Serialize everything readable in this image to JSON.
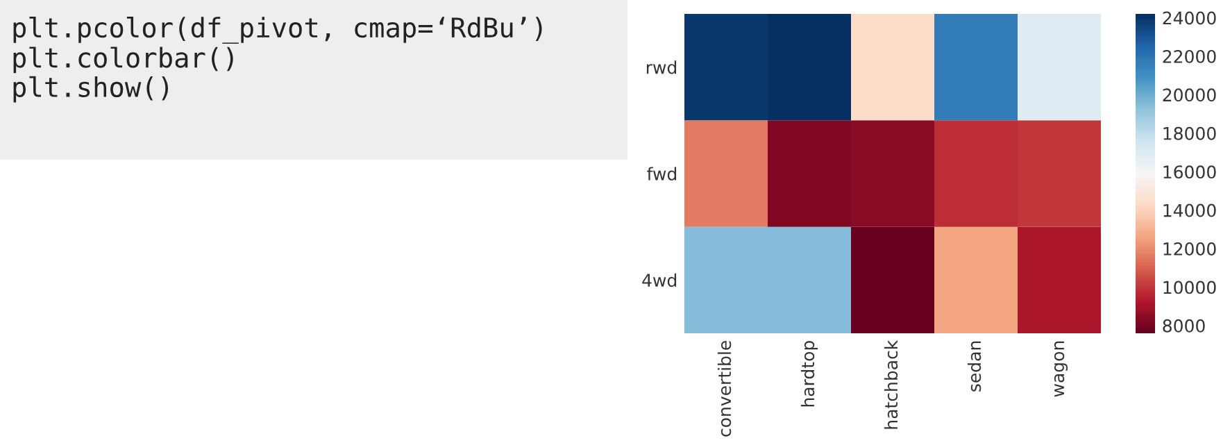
{
  "chart_data": {
    "type": "heatmap",
    "categories": [
      "convertible",
      "hardtop",
      "hatchback",
      "sedan",
      "wagon"
    ],
    "y_categories": [
      "rwd",
      "fwd",
      "4wd"
    ],
    "cells": [
      [
        23900,
        24200,
        14300,
        21700,
        17000
      ],
      [
        11600,
        8200,
        8400,
        9800,
        10000
      ],
      [
        19500,
        19500,
        7600,
        12600,
        9100
      ]
    ],
    "clim": [
      7600,
      24200
    ],
    "cticks": [
      8000,
      10000,
      12000,
      14000,
      16000,
      18000,
      20000,
      22000,
      24000
    ],
    "annotations": [
      "plt.pcolor(df_pivot, cmap=‘RdBu’)\nplt.colorbar()\nplt.show()"
    ]
  }
}
